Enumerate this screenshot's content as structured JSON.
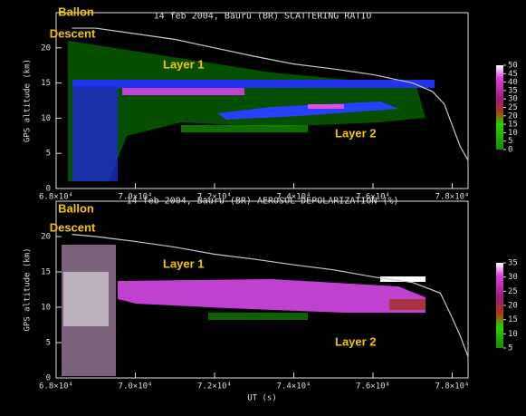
{
  "chart_data": [
    {
      "type": "line",
      "title": "14 feb 2004, Bauru (BR)   SCATTERING RATIO",
      "ylabel": "GPS altitude (km)",
      "annotations": [
        "Ballon",
        "Descent",
        "Layer 1",
        "Layer 2"
      ],
      "x": [
        68400,
        69000,
        70000,
        71000,
        72000,
        73000,
        74000,
        75000,
        76000,
        77000,
        77500,
        77800,
        78000,
        78200,
        78400
      ],
      "values": [
        22.8,
        22.8,
        22,
        21.2,
        20,
        18.8,
        17.7,
        17,
        16.2,
        15,
        13.8,
        12,
        9,
        6,
        4
      ],
      "color": "#c8c8c8",
      "xlim": [
        68000,
        78400
      ],
      "xticks": [
        {
          "value": 68000,
          "label": "6.8×10⁴"
        },
        {
          "value": 70000,
          "label": "7.0×10⁴"
        },
        {
          "value": 72000,
          "label": "7.2×10⁴"
        },
        {
          "value": 74000,
          "label": "7.4×10⁴"
        },
        {
          "value": 76000,
          "label": "7.6×10⁴"
        },
        {
          "value": 78000,
          "label": "7.8×10⁴"
        }
      ],
      "ylim": [
        0,
        25
      ],
      "yticks": [
        0,
        5,
        10,
        15,
        20
      ],
      "colorbar_ticks": [
        0,
        5,
        10,
        15,
        20,
        25,
        30,
        35,
        40,
        45,
        50
      ]
    },
    {
      "type": "line",
      "title": "14 feb 2004, Bauru (BR)   AEROSOL DEPOLARIZATION (%)",
      "ylabel": "GPS altitude (km)",
      "xlabel": "UT (s)",
      "annotations": [
        "Ballon",
        "Descent",
        "Layer 1",
        "Layer 2"
      ],
      "x": [
        68400,
        69000,
        70000,
        71000,
        72000,
        73000,
        74000,
        75000,
        76000,
        77000,
        77700,
        78000,
        78200,
        78400
      ],
      "values": [
        20.3,
        20,
        19.3,
        18.5,
        17.5,
        16.8,
        16,
        15.3,
        14.3,
        13.5,
        12,
        8.5,
        6,
        3
      ],
      "color": "#c8c8c8",
      "xlim": [
        68000,
        78400
      ],
      "xticks": [
        {
          "value": 68000,
          "label": "6.8×10⁴"
        },
        {
          "value": 70000,
          "label": "7.0×10⁴"
        },
        {
          "value": 72000,
          "label": "7.2×10⁴"
        },
        {
          "value": 74000,
          "label": "7.4×10⁴"
        },
        {
          "value": 76000,
          "label": "7.6×10⁴"
        },
        {
          "value": 78000,
          "label": "7.8×10⁴"
        }
      ],
      "ylim": [
        0,
        25
      ],
      "yticks": [
        0,
        5,
        10,
        15,
        20
      ],
      "colorbar_ticks": [
        5,
        10,
        15,
        20,
        25,
        30,
        35
      ]
    }
  ]
}
